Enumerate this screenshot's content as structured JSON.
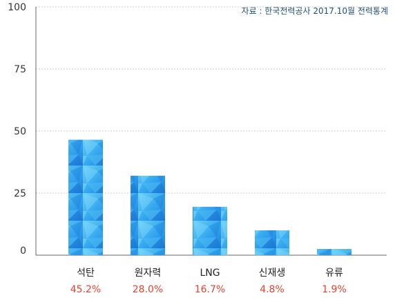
{
  "source_note": "자료 : 한국전력공사 2017.10월 전력통계",
  "colors": {
    "bar_light": "#5ec8f5",
    "bar_mid": "#2fa6ee",
    "bar_dark": "#1877d6",
    "percent_text": "#e8402c",
    "grid": "#cccccc",
    "axis": "#666666"
  },
  "chart_data": {
    "type": "bar",
    "categories": [
      "석탄",
      "원자력",
      "LNG",
      "신재생",
      "유류"
    ],
    "values": [
      46.5,
      32.0,
      19.5,
      10.0,
      2.5
    ],
    "percent_labels": [
      "45.2%",
      "28.0%",
      "16.7%",
      "4.8%",
      "1.9%"
    ],
    "title": "",
    "xlabel": "",
    "ylabel": "",
    "ylim": [
      0,
      100
    ],
    "yticks": [
      0,
      25,
      50,
      75,
      100
    ],
    "ytick_labels": [
      "0",
      "25",
      "50",
      "75",
      "100"
    ],
    "grid": true,
    "legend": "none"
  }
}
